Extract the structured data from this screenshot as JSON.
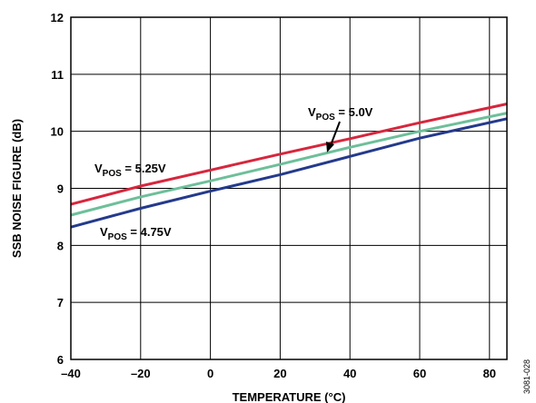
{
  "chart_data": {
    "type": "line",
    "xlabel": "TEMPERATURE (°C)",
    "ylabel": "SSB NOISE FIGURE (dB)",
    "xlim": [
      -40,
      85
    ],
    "ylim": [
      6,
      12
    ],
    "xticks": [
      -40,
      -20,
      0,
      20,
      40,
      60,
      80
    ],
    "xtick_labels": [
      "–40",
      "–20",
      "0",
      "20",
      "40",
      "60",
      "80"
    ],
    "yticks": [
      6,
      7,
      8,
      9,
      10,
      11,
      12
    ],
    "ytick_labels": [
      "6",
      "7",
      "8",
      "9",
      "10",
      "11",
      "12"
    ],
    "grid": true,
    "figure_code": "3081-028",
    "series": [
      {
        "name": "VPOS = 5.25V",
        "label_main": "V",
        "label_sub": "POS",
        "label_rest": " = 5.25V",
        "color": "#d7263d",
        "x": [
          -40,
          -20,
          0,
          20,
          40,
          60,
          85
        ],
        "y": [
          8.72,
          9.04,
          9.32,
          9.6,
          9.87,
          10.15,
          10.48
        ]
      },
      {
        "name": "VPOS = 5.0V",
        "label_main": "V",
        "label_sub": "POS",
        "label_rest": " = 5.0V",
        "color": "#6dbf9a",
        "x": [
          -40,
          -20,
          0,
          20,
          40,
          60,
          85
        ],
        "y": [
          8.53,
          8.85,
          9.13,
          9.42,
          9.72,
          10.0,
          10.32
        ]
      },
      {
        "name": "VPOS = 4.75V",
        "label_main": "V",
        "label_sub": "POS",
        "label_rest": " = 4.75V",
        "color": "#243a8c",
        "x": [
          -40,
          -20,
          0,
          20,
          40,
          60,
          85
        ],
        "y": [
          8.32,
          8.65,
          8.95,
          9.24,
          9.56,
          9.88,
          10.22
        ]
      }
    ]
  }
}
